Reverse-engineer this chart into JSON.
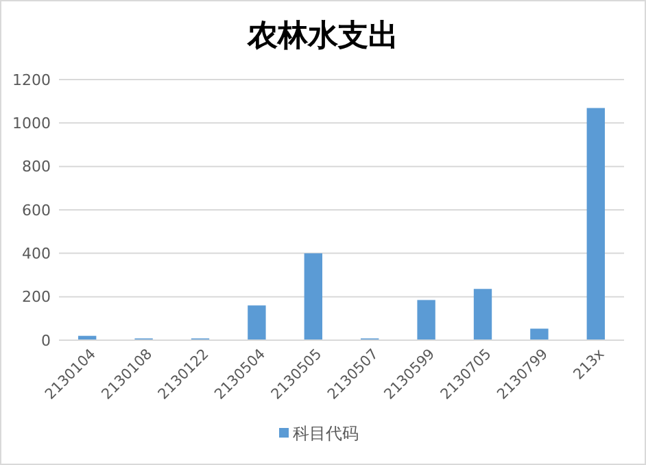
{
  "chart_data": {
    "type": "bar",
    "title": "农林水支出",
    "categories": [
      "2130104",
      "2130108",
      "2130122",
      "2130504",
      "2130505",
      "2130507",
      "2130599",
      "2130705",
      "2130799",
      "213x"
    ],
    "series": [
      {
        "name": "科目代码",
        "color": "#5b9bd5",
        "values": [
          20,
          8,
          8,
          160,
          400,
          8,
          185,
          236,
          53,
          1069
        ]
      }
    ],
    "ylim": [
      0,
      1200
    ],
    "yticks": [
      0,
      200,
      400,
      600,
      800,
      1000,
      1200
    ],
    "grid": "y",
    "legend": "bottom"
  }
}
